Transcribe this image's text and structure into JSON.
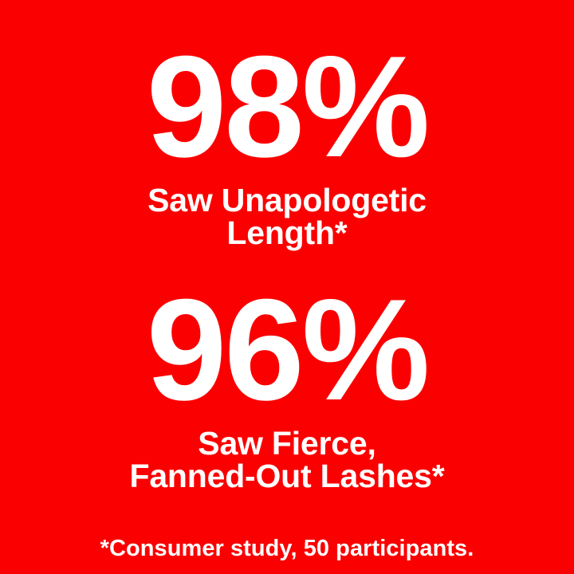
{
  "colors": {
    "background": "#fb0000",
    "text": "#ffffff"
  },
  "stats": [
    {
      "value": "98%",
      "caption_line1": "Saw Unapologetic",
      "caption_line2": "Length*"
    },
    {
      "value": "96%",
      "caption_line1": "Saw Fierce,",
      "caption_line2": "Fanned-Out Lashes*"
    }
  ],
  "footnote": "*Consumer study, 50 participants."
}
